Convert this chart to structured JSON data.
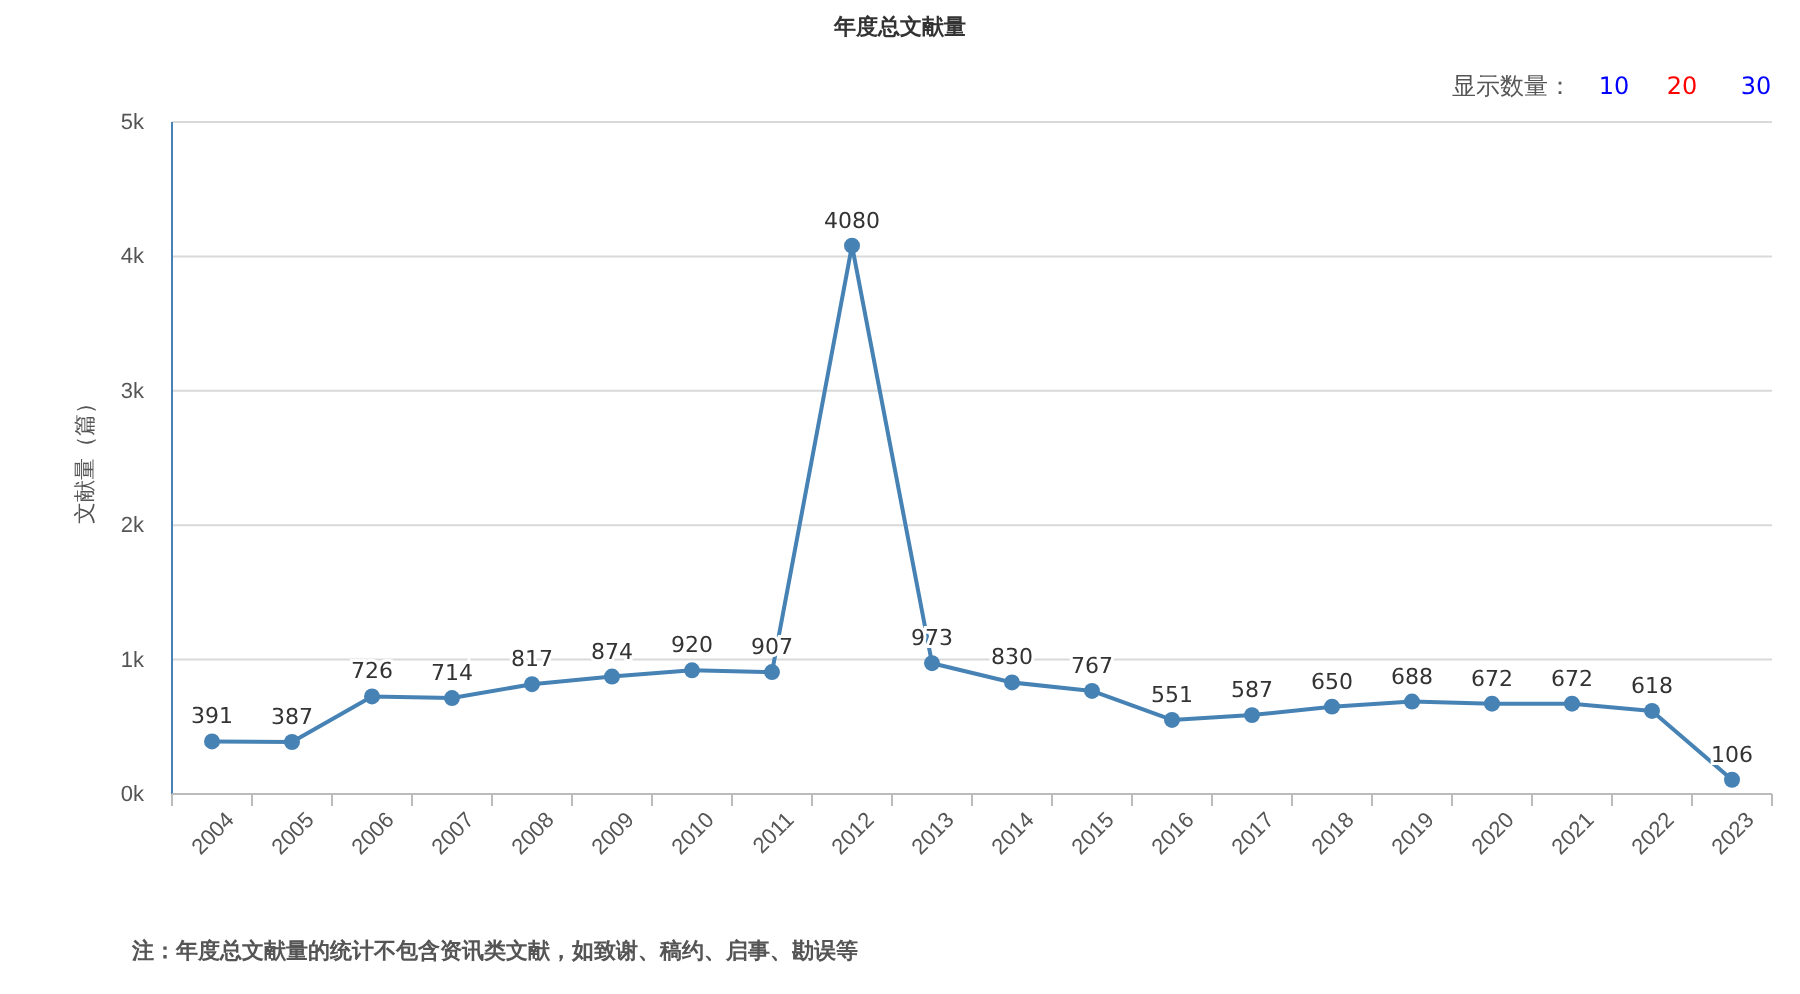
{
  "chart_data": {
    "type": "line",
    "title": "年度总文献量",
    "ylabel": "文献量（篇）",
    "categories": [
      "2004",
      "2005",
      "2006",
      "2007",
      "2008",
      "2009",
      "2010",
      "2011",
      "2012",
      "2013",
      "2014",
      "2015",
      "2016",
      "2017",
      "2018",
      "2019",
      "2020",
      "2021",
      "2022",
      "2023"
    ],
    "series": [
      {
        "color": "#4682b4",
        "values": [
          391,
          387,
          726,
          714,
          817,
          874,
          920,
          907,
          4080,
          973,
          830,
          767,
          551,
          587,
          650,
          688,
          672,
          672,
          618,
          106
        ]
      }
    ],
    "ylim": [
      0,
      5000
    ],
    "yticks": [
      {
        "value": 0,
        "label": "0k"
      },
      {
        "value": 1000,
        "label": "1k"
      },
      {
        "value": 2000,
        "label": "2k"
      },
      {
        "value": 3000,
        "label": "3k"
      },
      {
        "value": 4000,
        "label": "4k"
      },
      {
        "value": 5000,
        "label": "5k"
      }
    ],
    "grid": "y",
    "marker": "circle",
    "line_style": "solid",
    "data_labels": true,
    "annotations": [
      "注：年度总文献量的统计不包含资讯类文献，如致谢、稿约、启事、勘误等",
      "显示数量：",
      "10",
      "20",
      "30"
    ]
  }
}
